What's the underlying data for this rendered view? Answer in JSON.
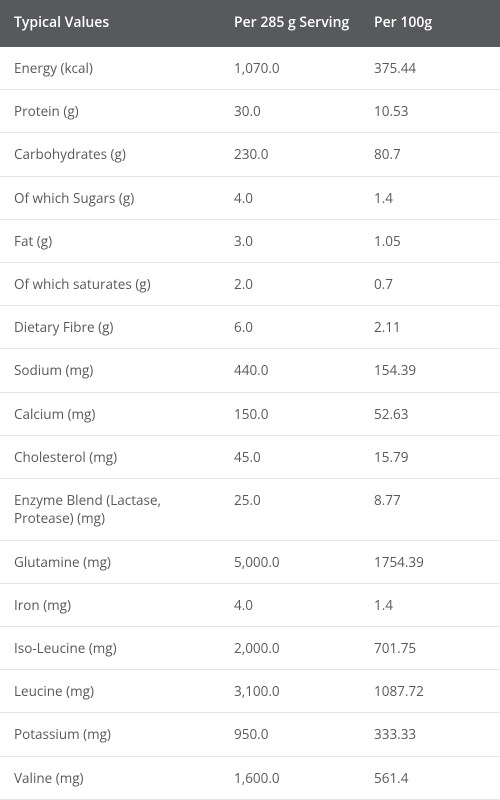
{
  "table": {
    "header_bg": "#58595b",
    "header_text_color": "#ffffff",
    "body_text_color": "#58595b",
    "border_color": "#e6e6e6",
    "columns": [
      {
        "label": "Typical Values"
      },
      {
        "label": "Per 285 g Serving"
      },
      {
        "label": "Per 100g"
      }
    ],
    "rows": [
      {
        "name": "Energy (kcal)",
        "serving": "1,070.0",
        "per100g": "375.44"
      },
      {
        "name": "Protein (g)",
        "serving": "30.0",
        "per100g": "10.53"
      },
      {
        "name": "Carbohydrates (g)",
        "serving": "230.0",
        "per100g": "80.7"
      },
      {
        "name": "Of which Sugars (g)",
        "serving": "4.0",
        "per100g": "1.4"
      },
      {
        "name": "Fat (g)",
        "serving": "3.0",
        "per100g": "1.05"
      },
      {
        "name": "Of which saturates (g)",
        "serving": "2.0",
        "per100g": "0.7"
      },
      {
        "name": "Dietary Fibre (g)",
        "serving": "6.0",
        "per100g": "2.11"
      },
      {
        "name": "Sodium (mg)",
        "serving": "440.0",
        "per100g": "154.39"
      },
      {
        "name": "Calcium (mg)",
        "serving": "150.0",
        "per100g": "52.63"
      },
      {
        "name": "Cholesterol (mg)",
        "serving": "45.0",
        "per100g": "15.79"
      },
      {
        "name": "Enzyme Blend (Lactase, Protease) (mg)",
        "serving": "25.0",
        "per100g": "8.77"
      },
      {
        "name": "Glutamine (mg)",
        "serving": "5,000.0",
        "per100g": "1754.39"
      },
      {
        "name": "Iron (mg)",
        "serving": "4.0",
        "per100g": "1.4"
      },
      {
        "name": "Iso-Leucine (mg)",
        "serving": "2,000.0",
        "per100g": "701.75"
      },
      {
        "name": "Leucine (mg)",
        "serving": "3,100.0",
        "per100g": "1087.72"
      },
      {
        "name": "Potassium (mg)",
        "serving": "950.0",
        "per100g": "333.33"
      },
      {
        "name": "Valine (mg)",
        "serving": "1,600.0",
        "per100g": "561.4"
      }
    ]
  }
}
